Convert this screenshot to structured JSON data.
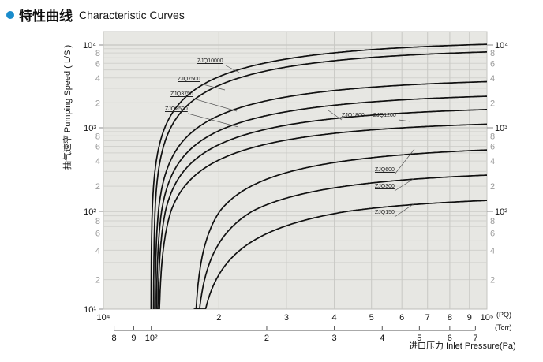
{
  "header": {
    "title_cn": "特性曲线",
    "title_en": "Characteristic Curves",
    "accent": "#1a8ccc"
  },
  "chart_data": {
    "type": "line",
    "title": "Characteristic Curves",
    "xlabel": "进口压力 Inlet Pressure(Pa)",
    "ylabel": "抽气速率 Pumping Speed ( L/S )",
    "x_scale": "log",
    "y_scale": "log",
    "xlim": [
      10000,
      100000
    ],
    "ylim": [
      10,
      10000
    ],
    "x_unit_pa": "(PQ)",
    "x_unit_torr": "(Torr)",
    "x_ticks_pa": [
      "10⁴",
      "2",
      "3",
      "4",
      "5",
      "6",
      "7",
      "8",
      "9",
      "10⁵"
    ],
    "x_ticks_torr": [
      {
        "label": "8",
        "torr": 80
      },
      {
        "label": "9",
        "torr": 90
      },
      {
        "label": "10²",
        "torr": 100
      },
      {
        "label": "2",
        "torr": 200
      },
      {
        "label": "3",
        "torr": 300
      },
      {
        "label": "4",
        "torr": 400
      },
      {
        "label": "5",
        "torr": 500
      },
      {
        "label": "6",
        "torr": 600
      },
      {
        "label": "7",
        "torr": 700
      }
    ],
    "y_ticks_left": [
      "10¹",
      "2",
      "4",
      "6",
      "8",
      "10²",
      "2",
      "4",
      "6",
      "8",
      "10³",
      "2",
      "4",
      "6",
      "8",
      "10⁴"
    ],
    "y_ticks_right": [
      "2",
      "4",
      "6",
      "8",
      "10²",
      "2",
      "4",
      "6",
      "8",
      "10³",
      "2",
      "4",
      "6",
      "8",
      "10⁴"
    ],
    "grid": true,
    "series": [
      {
        "name": "ZJQ10000",
        "start_pa": 13300,
        "x": [
          13300,
          15000,
          20000,
          30000,
          50000,
          100000
        ],
        "y": [
          10,
          1300,
          3800,
          6400,
          8600,
          11000
        ]
      },
      {
        "name": "ZJQ7500",
        "start_pa": 13500,
        "x": [
          13500,
          15000,
          20000,
          30000,
          50000,
          100000
        ],
        "y": [
          10,
          1000,
          3000,
          5200,
          7000,
          8900
        ]
      },
      {
        "name": "ZJQ3750",
        "start_pa": 13600,
        "x": [
          13600,
          15000,
          20000,
          30000,
          50000,
          100000
        ],
        "y": [
          10,
          450,
          1350,
          2300,
          3100,
          3900
        ]
      },
      {
        "name": "ZJQ2500",
        "start_pa": 13700,
        "x": [
          13700,
          15000,
          20000,
          30000,
          50000,
          100000
        ],
        "y": [
          10,
          300,
          900,
          1550,
          2050,
          2600
        ]
      },
      {
        "name": "ZJQ1800",
        "start_pa": 13800,
        "x": [
          13800,
          15000,
          20000,
          30000,
          50000,
          100000
        ],
        "y": [
          10,
          200,
          620,
          1060,
          1420,
          1800
        ]
      },
      {
        "name": "ZJQ1200",
        "start_pa": 13900,
        "x": [
          13900,
          15000,
          20000,
          30000,
          50000,
          100000
        ],
        "y": [
          10,
          130,
          410,
          700,
          940,
          1200
        ]
      },
      {
        "name": "ZJQ600",
        "start_pa": 17200,
        "x": [
          17200,
          20000,
          30000,
          50000,
          100000
        ],
        "y": [
          10,
          95,
          310,
          460,
          610
        ]
      },
      {
        "name": "ZJQ300",
        "start_pa": 17300,
        "x": [
          17300,
          20000,
          30000,
          50000,
          100000
        ],
        "y": [
          10,
          48,
          155,
          230,
          305
        ]
      },
      {
        "name": "ZJQ150",
        "start_pa": 17400,
        "x": [
          17400,
          20000,
          30000,
          50000,
          100000
        ],
        "y": [
          10,
          24,
          78,
          115,
          152
        ]
      }
    ]
  }
}
